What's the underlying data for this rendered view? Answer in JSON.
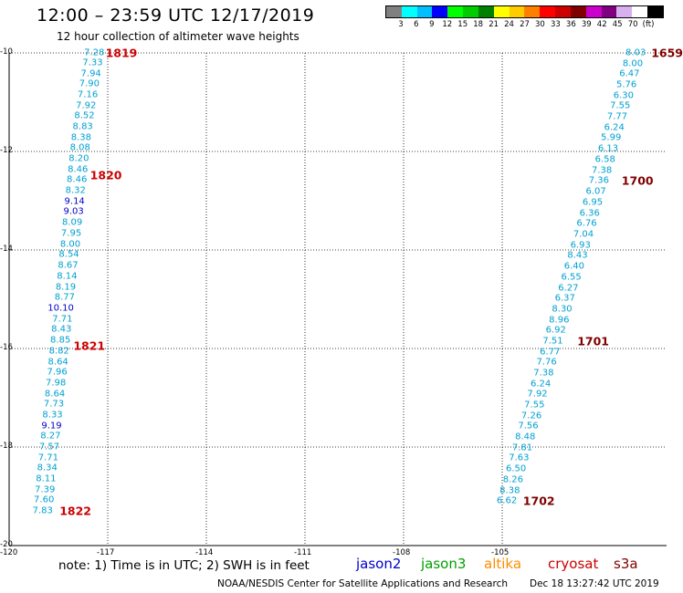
{
  "title": "12:00 – 23:59 UTC 12/17/2019",
  "subtitle": "12 hour collection of altimeter wave heights",
  "colorbar": {
    "colors": [
      "#808080",
      "#00ffff",
      "#00bfff",
      "#0000ff",
      "#00ff00",
      "#00cc00",
      "#008000",
      "#ffff00",
      "#ffcc00",
      "#ff8000",
      "#ff0000",
      "#cc0000",
      "#800000",
      "#cc00cc",
      "#800080",
      "#d8b0f0",
      "#ffffff",
      "#000000"
    ],
    "labels": [
      "3",
      "6",
      "9",
      "12",
      "15",
      "18",
      "21",
      "24",
      "27",
      "30",
      "33",
      "36",
      "39",
      "42",
      "45",
      "70",
      "(ft)"
    ]
  },
  "note": "note:  1) Time is in UTC;  2) SWH is in feet",
  "legend": [
    {
      "name": "jason2",
      "color": "#0000cc"
    },
    {
      "name": "jason3",
      "color": "#00a000"
    },
    {
      "name": "altika",
      "color": "#ff8c00"
    },
    {
      "name": "cryosat",
      "color": "#cc0000"
    },
    {
      "name": "s3a",
      "color": "#800000"
    }
  ],
  "credit": "NOAA/NESDIS Center for Satellite Applications and Research",
  "timestamp": "Dec 18 13:27:42 UTC 2019",
  "chart_data": {
    "type": "scatter",
    "xlim": [
      -120,
      -100
    ],
    "ylim": [
      -20,
      -10
    ],
    "x_ticks": [
      "-120",
      "-117",
      "-114",
      "-111",
      "-108",
      "-105"
    ],
    "x_tick_values": [
      -120,
      -117,
      -114,
      -111,
      -108,
      -105
    ],
    "y_ticks": [
      "-10",
      "-12",
      "-14",
      "-16",
      "-18",
      "-20"
    ],
    "y_tick_values": [
      -10,
      -12,
      -14,
      -16,
      -18,
      -20
    ],
    "grid": "dotted",
    "series": [
      {
        "name": "cryosat",
        "color": "#00a0d0",
        "points": [
          {
            "x": -117.1,
            "y": -10.0,
            "v": "7.28"
          },
          {
            "x": -117.15,
            "y": -10.2,
            "v": "7.33"
          },
          {
            "x": -117.2,
            "y": -10.42,
            "v": "7.94"
          },
          {
            "x": -117.25,
            "y": -10.63,
            "v": "7.90"
          },
          {
            "x": -117.3,
            "y": -10.85,
            "v": "7.16"
          },
          {
            "x": -117.35,
            "y": -11.07,
            "v": "7.92"
          },
          {
            "x": -117.4,
            "y": -11.28,
            "v": "8.52"
          },
          {
            "x": -117.45,
            "y": -11.5,
            "v": "8.83"
          },
          {
            "x": -117.5,
            "y": -11.72,
            "v": "8.38"
          },
          {
            "x": -117.53,
            "y": -11.93,
            "v": "8.08"
          },
          {
            "x": -117.57,
            "y": -12.15,
            "v": "8.20"
          },
          {
            "x": -117.6,
            "y": -12.37,
            "v": "8.46"
          },
          {
            "x": -117.63,
            "y": -12.58,
            "v": "8.46"
          },
          {
            "x": -117.67,
            "y": -12.8,
            "v": "8.32"
          },
          {
            "x": -117.7,
            "y": -13.02,
            "v": "9.14",
            "color": "#0000cc"
          },
          {
            "x": -117.73,
            "y": -13.23,
            "v": "9.03",
            "color": "#0000cc"
          },
          {
            "x": -117.77,
            "y": -13.45,
            "v": "8.09"
          },
          {
            "x": -117.8,
            "y": -13.67,
            "v": "7.95"
          },
          {
            "x": -117.83,
            "y": -13.88,
            "v": "8.00"
          },
          {
            "x": -117.87,
            "y": -14.1,
            "v": "8.54"
          },
          {
            "x": -117.9,
            "y": -14.32,
            "v": "8.67"
          },
          {
            "x": -117.93,
            "y": -14.53,
            "v": "8.14"
          },
          {
            "x": -117.97,
            "y": -14.75,
            "v": "8.19"
          },
          {
            "x": -118.0,
            "y": -14.97,
            "v": "8.77"
          },
          {
            "x": -118.03,
            "y": -15.18,
            "v": "10.10",
            "color": "#0000cc"
          },
          {
            "x": -118.07,
            "y": -15.4,
            "v": "7.71"
          },
          {
            "x": -118.1,
            "y": -15.62,
            "v": "8.43"
          },
          {
            "x": -118.13,
            "y": -15.83,
            "v": "8.85"
          },
          {
            "x": -118.17,
            "y": -16.05,
            "v": "8.82"
          },
          {
            "x": -118.2,
            "y": -16.27,
            "v": "8.64"
          },
          {
            "x": -118.23,
            "y": -16.48,
            "v": "7.96"
          },
          {
            "x": -118.27,
            "y": -16.7,
            "v": "7.98"
          },
          {
            "x": -118.3,
            "y": -16.92,
            "v": "8.64"
          },
          {
            "x": -118.33,
            "y": -17.13,
            "v": "7.73"
          },
          {
            "x": -118.37,
            "y": -17.35,
            "v": "8.33"
          },
          {
            "x": -118.4,
            "y": -17.57,
            "v": "9.19",
            "color": "#0000cc"
          },
          {
            "x": -118.43,
            "y": -17.78,
            "v": "8.27"
          },
          {
            "x": -118.47,
            "y": -18.0,
            "v": "7.57"
          },
          {
            "x": -118.5,
            "y": -18.22,
            "v": "7.71"
          },
          {
            "x": -118.53,
            "y": -18.43,
            "v": "8.34"
          },
          {
            "x": -118.57,
            "y": -18.65,
            "v": "8.11"
          },
          {
            "x": -118.6,
            "y": -18.87,
            "v": "7.39"
          },
          {
            "x": -118.63,
            "y": -19.08,
            "v": "7.60"
          },
          {
            "x": -118.67,
            "y": -19.3,
            "v": "7.83"
          }
        ],
        "time_labels": [
          {
            "x": -117.15,
            "y": -10.0,
            "t": "1819",
            "color": "#cc0000"
          },
          {
            "x": -117.62,
            "y": -12.48,
            "t": "1820",
            "color": "#cc0000"
          },
          {
            "x": -118.13,
            "y": -15.95,
            "t": "1821",
            "color": "#cc0000"
          },
          {
            "x": -118.55,
            "y": -19.3,
            "t": "1822",
            "color": "#cc0000"
          }
        ]
      },
      {
        "name": "s3a",
        "color": "#00a0d0",
        "points": [
          {
            "x": -100.63,
            "y": -10.0,
            "v": "8.03"
          },
          {
            "x": -100.72,
            "y": -10.22,
            "v": "8.00"
          },
          {
            "x": -100.82,
            "y": -10.43,
            "v": "6.47"
          },
          {
            "x": -100.91,
            "y": -10.65,
            "v": "5.76"
          },
          {
            "x": -101.0,
            "y": -10.87,
            "v": "6.30"
          },
          {
            "x": -101.1,
            "y": -11.08,
            "v": "7.55"
          },
          {
            "x": -101.19,
            "y": -11.3,
            "v": "7.77"
          },
          {
            "x": -101.28,
            "y": -11.52,
            "v": "6.24"
          },
          {
            "x": -101.38,
            "y": -11.73,
            "v": "5.99"
          },
          {
            "x": -101.47,
            "y": -11.95,
            "v": "6.13"
          },
          {
            "x": -101.56,
            "y": -12.17,
            "v": "6.58"
          },
          {
            "x": -101.66,
            "y": -12.38,
            "v": "7.38"
          },
          {
            "x": -101.75,
            "y": -12.6,
            "v": "7.36"
          },
          {
            "x": -101.84,
            "y": -12.82,
            "v": "6.07"
          },
          {
            "x": -101.94,
            "y": -13.03,
            "v": "6.95"
          },
          {
            "x": -102.03,
            "y": -13.25,
            "v": "6.36"
          },
          {
            "x": -102.12,
            "y": -13.47,
            "v": "6.76"
          },
          {
            "x": -102.22,
            "y": -13.68,
            "v": "7.04"
          },
          {
            "x": -102.31,
            "y": -13.9,
            "v": "6.93"
          },
          {
            "x": -102.4,
            "y": -14.12,
            "v": "8.43"
          },
          {
            "x": -102.5,
            "y": -14.33,
            "v": "6.40"
          },
          {
            "x": -102.59,
            "y": -14.55,
            "v": "6.55"
          },
          {
            "x": -102.68,
            "y": -14.77,
            "v": "6.27"
          },
          {
            "x": -102.78,
            "y": -14.98,
            "v": "6.37"
          },
          {
            "x": -102.87,
            "y": -15.2,
            "v": "8.30"
          },
          {
            "x": -102.96,
            "y": -15.42,
            "v": "8.96"
          },
          {
            "x": -103.06,
            "y": -15.63,
            "v": "6.92"
          },
          {
            "x": -103.15,
            "y": -15.85,
            "v": "7.51"
          },
          {
            "x": -103.24,
            "y": -16.07,
            "v": "6.77"
          },
          {
            "x": -103.34,
            "y": -16.28,
            "v": "7.76"
          },
          {
            "x": -103.43,
            "y": -16.5,
            "v": "7.38"
          },
          {
            "x": -103.52,
            "y": -16.72,
            "v": "6.24"
          },
          {
            "x": -103.62,
            "y": -16.93,
            "v": "7.92"
          },
          {
            "x": -103.71,
            "y": -17.15,
            "v": "7.55"
          },
          {
            "x": -103.8,
            "y": -17.37,
            "v": "7.26"
          },
          {
            "x": -103.9,
            "y": -17.58,
            "v": "7.56"
          },
          {
            "x": -103.99,
            "y": -17.8,
            "v": "8.48"
          },
          {
            "x": -104.08,
            "y": -18.02,
            "v": "7.81"
          },
          {
            "x": -104.18,
            "y": -18.23,
            "v": "7.63"
          },
          {
            "x": -104.27,
            "y": -18.45,
            "v": "6.50"
          },
          {
            "x": -104.36,
            "y": -18.67,
            "v": "8.26"
          },
          {
            "x": -104.46,
            "y": -18.88,
            "v": "8.38"
          },
          {
            "x": -104.55,
            "y": -19.1,
            "v": "6.62"
          }
        ],
        "time_labels": [
          {
            "x": -100.55,
            "y": -10.0,
            "t": "1659",
            "color": "#800000"
          },
          {
            "x": -101.45,
            "y": -12.6,
            "t": "1700",
            "color": "#800000"
          },
          {
            "x": -102.8,
            "y": -15.85,
            "t": "1701",
            "color": "#800000"
          },
          {
            "x": -104.45,
            "y": -19.1,
            "t": "1702",
            "color": "#800000"
          }
        ]
      }
    ]
  }
}
